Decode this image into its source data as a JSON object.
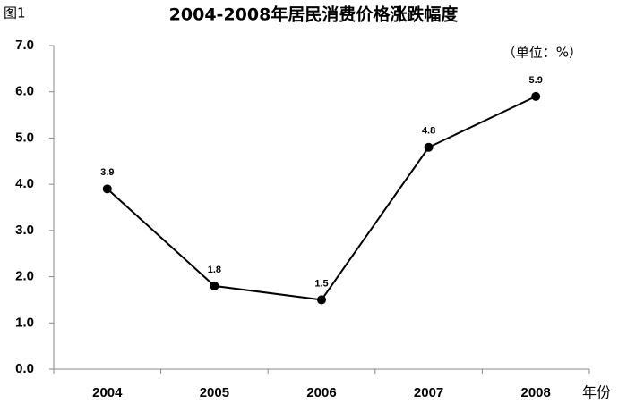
{
  "chart_data": {
    "type": "line",
    "figure_label": "图1",
    "title": "2004-2008年居民消费价格涨跌幅度",
    "unit_label": "（单位：%）",
    "x_label": "年份",
    "categories": [
      "2004",
      "2005",
      "2006",
      "2007",
      "2008"
    ],
    "values": [
      3.9,
      1.8,
      1.5,
      4.8,
      5.9
    ],
    "color": "#000000",
    "ylim": [
      0,
      7
    ],
    "yticks": [
      {
        "value": 0,
        "label": "0.0"
      },
      {
        "value": 1,
        "label": "1.0"
      },
      {
        "value": 2,
        "label": "2.0"
      },
      {
        "value": 3,
        "label": "3.0"
      },
      {
        "value": 4,
        "label": "4.0"
      },
      {
        "value": 5,
        "label": "5.0"
      },
      {
        "value": 6,
        "label": "6.0"
      },
      {
        "value": 7,
        "label": "7.0"
      }
    ],
    "grid": false
  }
}
